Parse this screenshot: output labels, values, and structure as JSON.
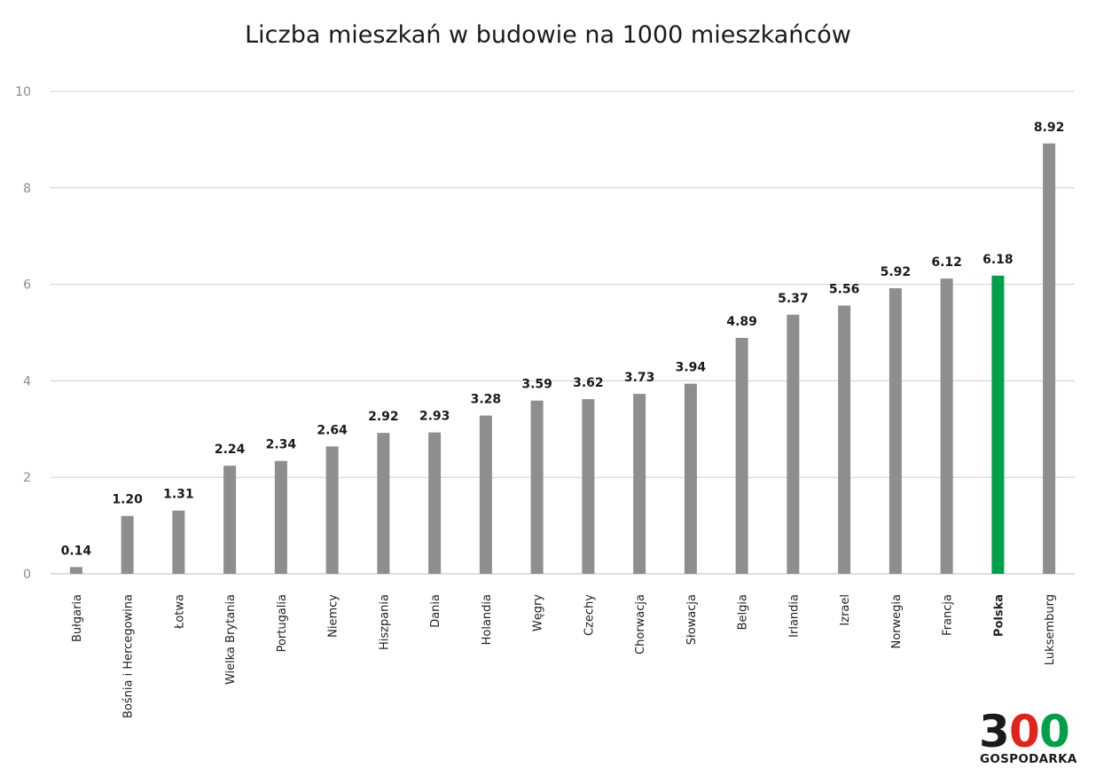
{
  "chart_data": {
    "type": "bar",
    "title": "Liczba mieszkań w budowie na 1000 mieszkańców",
    "xlabel": "",
    "ylabel": "",
    "ylim": [
      0,
      10
    ],
    "yticks": [
      "0",
      "2",
      "4",
      "6",
      "8",
      "10"
    ],
    "grid": true,
    "categories": [
      "Bułgaria",
      "Bośnia i Hercegowina",
      "Łotwa",
      "Wielka Brytania",
      "Portugalia",
      "Niemcy",
      "Hiszpania",
      "Dania",
      "Holandia",
      "Węgry",
      "Czechy",
      "Chorwacja",
      "Słowacja",
      "Belgia",
      "Irlandia",
      "Izrael",
      "Norwegia",
      "Francja",
      "Polska",
      "Luksemburg"
    ],
    "values": [
      0.14,
      1.2,
      1.31,
      2.24,
      2.34,
      2.64,
      2.92,
      2.93,
      3.28,
      3.59,
      3.62,
      3.73,
      3.94,
      4.89,
      5.37,
      5.56,
      5.92,
      6.12,
      6.18,
      8.92
    ],
    "value_labels": [
      "0.14",
      "1.20",
      "1.31",
      "2.24",
      "2.34",
      "2.64",
      "2.92",
      "2.93",
      "3.28",
      "3.59",
      "3.62",
      "3.73",
      "3.94",
      "4.89",
      "5.37",
      "5.56",
      "5.92",
      "6.12",
      "6.18",
      "8.92"
    ],
    "highlight_category": "Polska",
    "colors": {
      "bar": "#8e8e8e",
      "highlight": "#00a04a",
      "grid": "#cfcfcf"
    }
  },
  "logo": {
    "digit_3": "3",
    "digit_0_red": "0",
    "digit_0_green": "0",
    "subtitle": "GOSPODARKA",
    "colors": {
      "dark": "#1a1a1a",
      "red": "#e2231a",
      "green": "#00a04a"
    }
  }
}
